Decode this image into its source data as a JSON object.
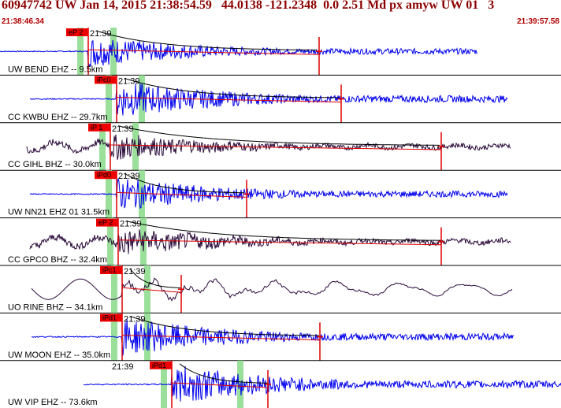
{
  "header": {
    "title": "60947742 UW Jan 14, 2015 21:38:54.59   44.0138 -121.2348  0.0 2.51 Md px amyw UW 01   3",
    "start_time": "21:38:46.34",
    "end_time": "21:39:57.58"
  },
  "chart_data": {
    "type": "line",
    "title": "60947742 UW Jan 14, 2015 21:38:54.59   44.0138 -121.2348  0.0 2.51 Md px amyw UW 01   3",
    "x_range": [
      "21:38:46.34",
      "21:39:57.58"
    ],
    "minute_mark": "21:39",
    "colors": {
      "blue_trace": "#0000ee",
      "dark_trace": "#2a0a3a",
      "pick": "#dd0000",
      "pick_flag": "#ee0000",
      "window": "#9adf9a",
      "text": "#000000"
    },
    "channels": [
      {
        "label": "UW BEND EHZ -- 9.5km",
        "pick": "eP 2",
        "trace_color": "blue",
        "freq": "high",
        "amp": 0.75
      },
      {
        "label": "CC KWBU EHZ -- 29.7km",
        "pick": "iPc0",
        "trace_color": "blue",
        "freq": "high",
        "amp": 0.9
      },
      {
        "label": "CC GIHL BHZ -- 30.0km",
        "pick": "iP 1",
        "trace_color": "dark",
        "freq": "mixed",
        "amp": 0.8
      },
      {
        "label": "UW NN21 EHZ 01 31.5km",
        "pick": "iPd0",
        "trace_color": "blue",
        "freq": "high",
        "amp": 0.8
      },
      {
        "label": "CC GPCO BHZ -- 32.4km",
        "pick": "eP 2",
        "trace_color": "dark",
        "freq": "mixed",
        "amp": 0.85
      },
      {
        "label": "UO RINE BHZ -- 34.1km",
        "pick": "iPc1",
        "trace_color": "dark",
        "freq": "low",
        "amp": 0.8
      },
      {
        "label": "UW MOON EHZ -- 35.0km",
        "pick": "iPd1",
        "trace_color": "blue",
        "freq": "high",
        "amp": 0.9
      },
      {
        "label": "UW VIP EHZ -- 73.6km",
        "pick": "iPd1",
        "trace_color": "blue",
        "freq": "high",
        "amp": 0.95
      }
    ]
  }
}
